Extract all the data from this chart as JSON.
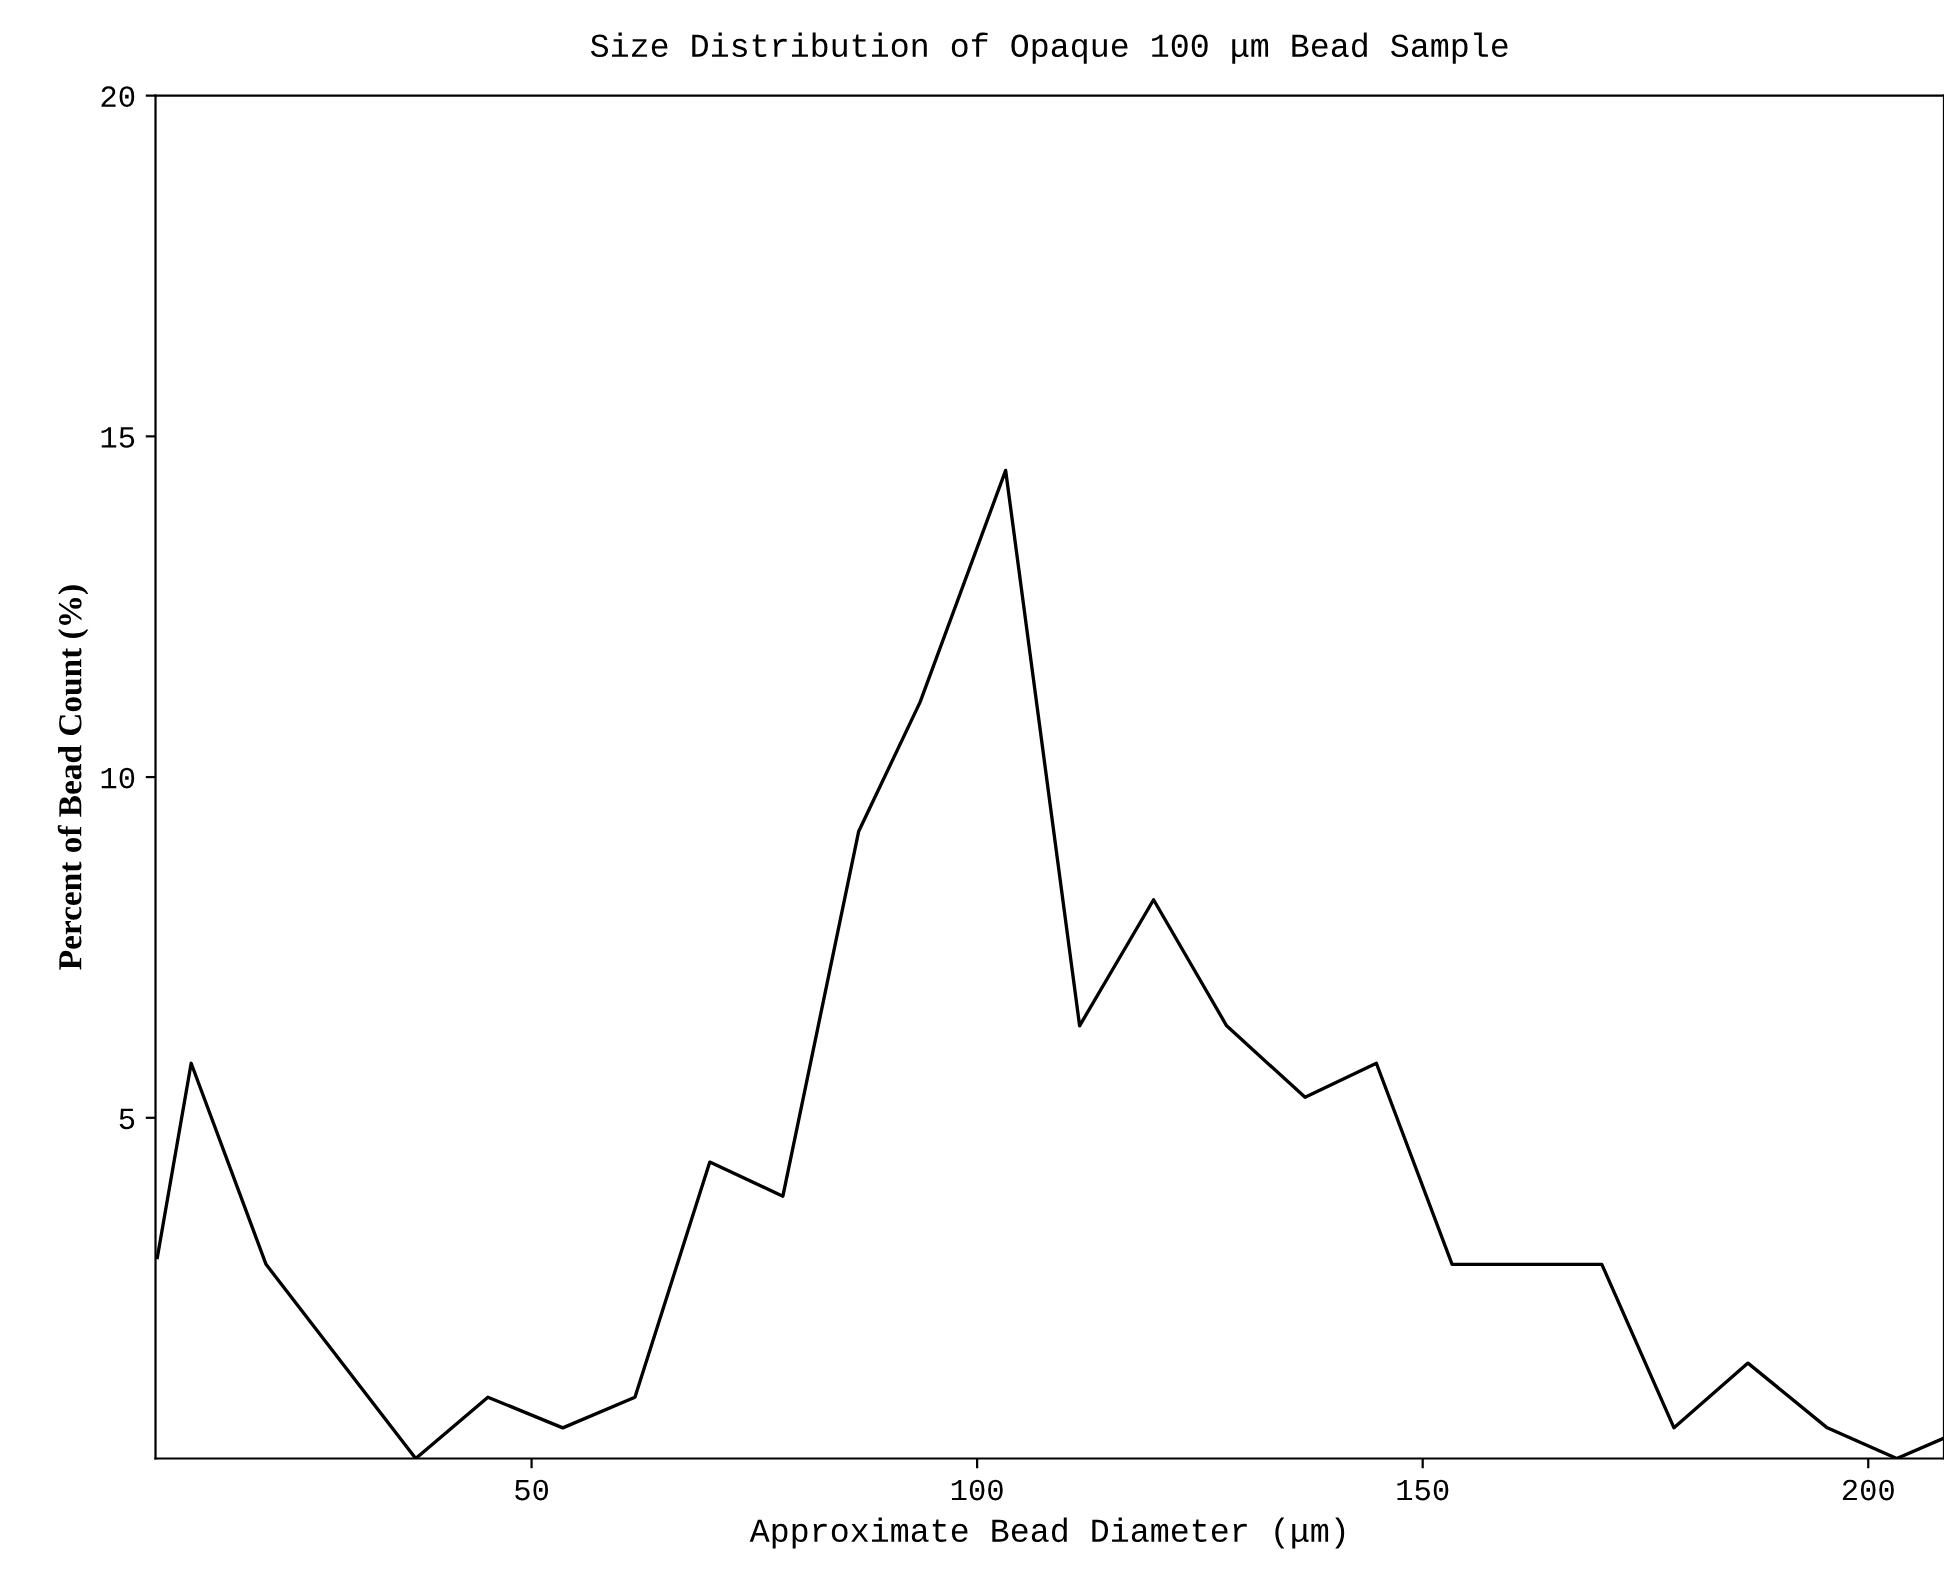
{
  "chart_data": {
    "type": "line",
    "title": "Size Distribution of Opaque 100 μm Bead Sample",
    "xlabel": "Approximate Bead Diameter (μm)",
    "ylabel": "Percent of Bead Count (%)",
    "x": [
      8.0,
      11.8,
      20.2,
      37.0,
      45.1,
      53.5,
      61.6,
      70.0,
      78.2,
      86.7,
      93.6,
      103.2,
      111.5,
      119.8,
      128.0,
      136.8,
      144.8,
      153.3,
      170.1,
      178.2,
      186.5,
      195.4,
      203.2,
      208.5
    ],
    "series": [
      {
        "color": "#000000",
        "values": [
          2.95,
          5.8,
          2.85,
          0,
          0.9,
          0.45,
          0.9,
          4.35,
          3.85,
          9.2,
          11.1,
          14.5,
          6.35,
          8.2,
          6.35,
          5.3,
          5.8,
          2.85,
          2.85,
          0.45,
          1.4,
          0.45,
          0,
          0.3
        ]
      }
    ],
    "xlim": [
      7.8,
      208.5
    ],
    "ylim": [
      0,
      20
    ],
    "xticks": [
      50,
      100,
      150,
      200
    ],
    "yticks": [
      5,
      10,
      15,
      20
    ],
    "grid": false,
    "legend": false,
    "marker": "none",
    "line_style": "solid"
  }
}
